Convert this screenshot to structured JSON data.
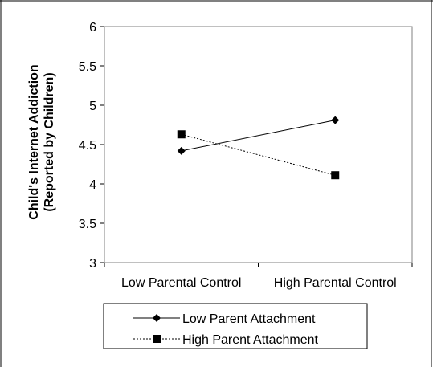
{
  "chart_data": {
    "type": "line",
    "ylabel_line1": "Child's Internet Addiction",
    "ylabel_line2": "(Reported by Children)",
    "categories": [
      "Low Parental Control",
      "High Parental Control"
    ],
    "yticks": [
      "6",
      "5.5",
      "5",
      "4.5",
      "4",
      "3.5",
      "3"
    ],
    "ylim": [
      3,
      6
    ],
    "grid": false,
    "legend_position": "bottom",
    "series": [
      {
        "name": "Low Parent Attachment",
        "values": [
          4.42,
          4.81
        ],
        "line_style": "solid",
        "marker": "diamond",
        "color": "#000000"
      },
      {
        "name": "High Parent Attachment",
        "values": [
          4.63,
          4.11
        ],
        "line_style": "dotted",
        "marker": "square",
        "color": "#000000"
      }
    ]
  }
}
